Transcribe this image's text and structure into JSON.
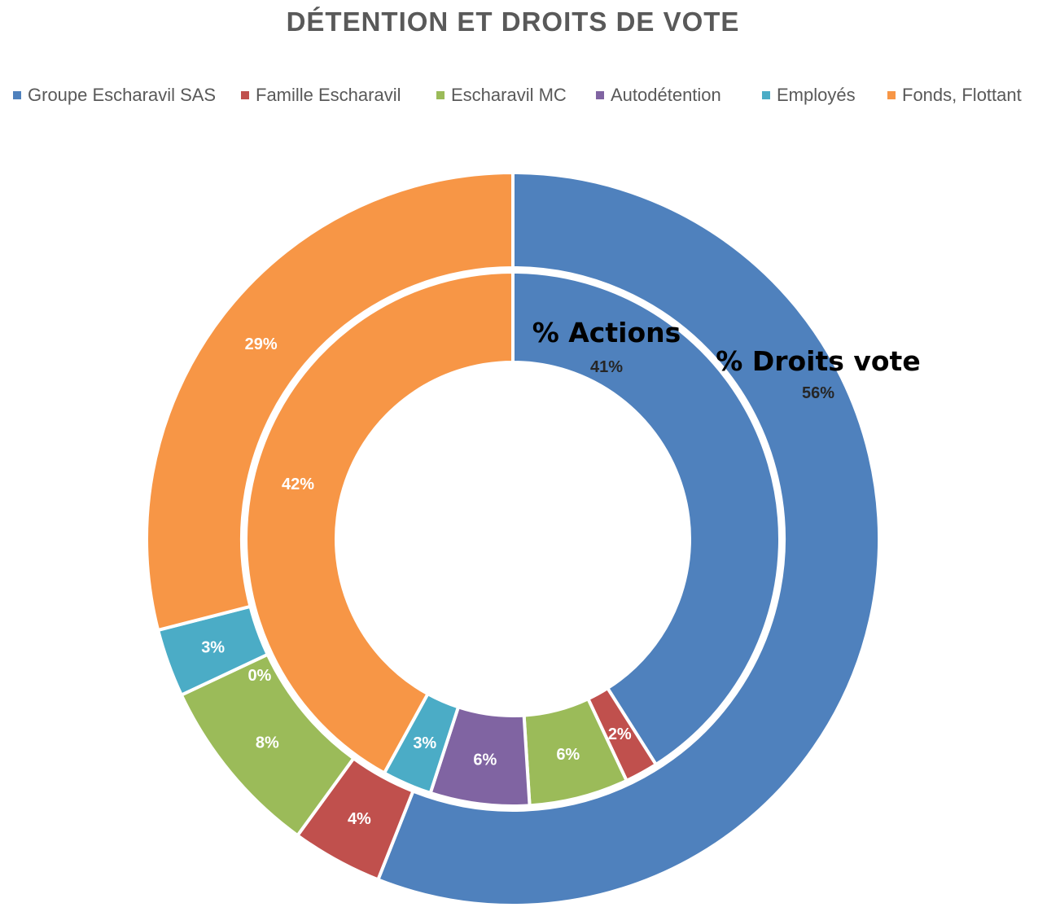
{
  "chart_data": {
    "type": "donut",
    "title": "DÉTENTION ET DROITS DE VOTE",
    "categories": [
      "Groupe Escharavil SAS",
      "Famille Escharavil",
      "Escharavil MC",
      "Autodétention",
      "Employés",
      "Fonds, Flottant"
    ],
    "colors": [
      "#4f81bd",
      "#c0504d",
      "#9bbb59",
      "#8064a2",
      "#4bacc6",
      "#f79646"
    ],
    "legend_position": "top",
    "series": [
      {
        "name": "% Actions",
        "ring": "inner",
        "values": [
          41,
          2,
          6,
          6,
          3,
          42
        ],
        "labels": [
          "41%",
          "2%",
          "6%",
          "6%",
          "3%",
          "42%"
        ]
      },
      {
        "name": "% Droits vote",
        "ring": "outer",
        "values": [
          56,
          4,
          8,
          0,
          3,
          29
        ],
        "labels": [
          "56%",
          "4%",
          "8%",
          "0%",
          "3%",
          "29%"
        ]
      }
    ]
  }
}
